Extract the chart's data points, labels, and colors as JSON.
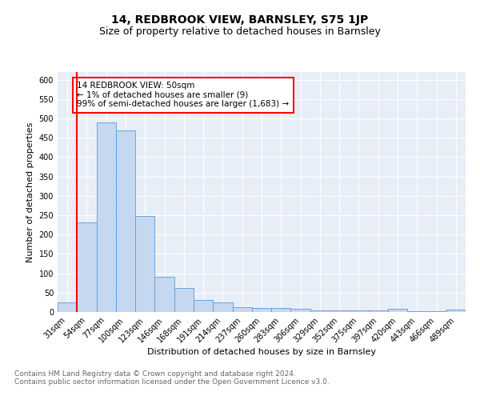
{
  "title": "14, REDBROOK VIEW, BARNSLEY, S75 1JP",
  "subtitle": "Size of property relative to detached houses in Barnsley",
  "xlabel": "Distribution of detached houses by size in Barnsley",
  "ylabel": "Number of detached properties",
  "categories": [
    "31sqm",
    "54sqm",
    "77sqm",
    "100sqm",
    "123sqm",
    "146sqm",
    "168sqm",
    "191sqm",
    "214sqm",
    "237sqm",
    "260sqm",
    "283sqm",
    "306sqm",
    "329sqm",
    "352sqm",
    "375sqm",
    "397sqm",
    "420sqm",
    "443sqm",
    "466sqm",
    "489sqm"
  ],
  "values": [
    25,
    232,
    490,
    470,
    248,
    90,
    63,
    30,
    24,
    13,
    11,
    11,
    8,
    5,
    4,
    4,
    4,
    8,
    2,
    2,
    6
  ],
  "bar_color": "#c5d8f0",
  "bar_edge_color": "#5b9bd5",
  "red_line_x": 0.5,
  "annotation_text": "14 REDBROOK VIEW: 50sqm\n← 1% of detached houses are smaller (9)\n99% of semi-detached houses are larger (1,683) →",
  "annotation_box_color": "white",
  "annotation_box_edge_color": "red",
  "ylim": [
    0,
    620
  ],
  "yticks": [
    0,
    50,
    100,
    150,
    200,
    250,
    300,
    350,
    400,
    450,
    500,
    550,
    600
  ],
  "background_color": "#e8eef8",
  "grid_color": "white",
  "footer_text": "Contains HM Land Registry data © Crown copyright and database right 2024.\nContains public sector information licensed under the Open Government Licence v3.0.",
  "title_fontsize": 10,
  "subtitle_fontsize": 9,
  "xlabel_fontsize": 8,
  "ylabel_fontsize": 8,
  "tick_fontsize": 7,
  "annotation_fontsize": 7.5,
  "footer_fontsize": 6.5
}
